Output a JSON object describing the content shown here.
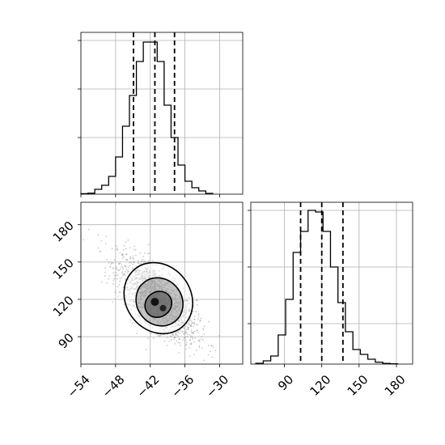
{
  "chart_data": [
    {
      "type": "histogram",
      "panel": "top-left",
      "parameter_axis": {
        "range": [
          -54,
          -26
        ],
        "ticks": [
          -54,
          -48,
          -42,
          -36,
          -30
        ]
      },
      "bin_edges": [
        -54.0,
        -52.8,
        -51.6,
        -50.4,
        -49.2,
        -48.0,
        -46.8,
        -45.6,
        -44.4,
        -43.2,
        -42.0,
        -40.8,
        -39.6,
        -38.4,
        -37.2,
        -36.0,
        -34.8,
        -33.6,
        -32.4,
        -31.2
      ],
      "counts": [
        0.3,
        0.6,
        3,
        5.5,
        11,
        23,
        42,
        61,
        82,
        94,
        94,
        82,
        55,
        35,
        18,
        8,
        4,
        2,
        0.5
      ],
      "count_range": [
        0,
        100
      ],
      "quantile_lines": [
        -44.9,
        -41.2,
        -37.8
      ],
      "grid": true
    },
    {
      "type": "scatter-density",
      "panel": "bottom-left",
      "x_axis": {
        "range": [
          -54,
          -26
        ],
        "ticks": [
          -54,
          -48,
          -42,
          -36,
          -30
        ],
        "tick_labels": [
          "−54",
          "−48",
          "−42",
          "−36",
          "−30"
        ]
      },
      "y_axis": {
        "range": [
          68,
          198
        ],
        "ticks": [
          90,
          120,
          150,
          180
        ],
        "tick_labels": [
          "90",
          "120",
          "150",
          "180"
        ]
      },
      "distribution": {
        "mean": [
          -40.8,
          120
        ],
        "sd": [
          3.4,
          17
        ],
        "correlation": -0.72
      },
      "contours": [
        {
          "level": "outer",
          "center": [
            -40.6,
            121
          ],
          "radii": [
            5.6,
            30
          ]
        },
        {
          "level": "middle",
          "center": [
            -40.4,
            118
          ],
          "radii": [
            3.9,
            20
          ]
        },
        {
          "level": "inner",
          "center": [
            -40.6,
            116
          ],
          "radii": [
            2.4,
            10
          ]
        }
      ],
      "grid": true
    },
    {
      "type": "histogram",
      "panel": "bottom-right",
      "parameter_axis": {
        "range": [
          63,
          193
        ],
        "ticks": [
          90,
          120,
          150,
          180
        ],
        "tick_labels": [
          "90",
          "120",
          "150",
          "180"
        ]
      },
      "bin_edges": [
        67,
        73,
        79,
        85,
        91,
        97,
        103,
        109,
        115,
        121,
        127,
        133,
        139,
        145,
        151,
        157,
        163,
        169,
        175,
        181
      ],
      "counts": [
        0.5,
        2,
        5,
        18,
        40,
        69,
        82,
        95,
        94,
        82,
        60,
        38,
        20,
        9,
        6,
        3,
        1.2,
        0.4,
        0.2
      ],
      "count_range": [
        0,
        100
      ],
      "quantile_lines": [
        103,
        120,
        137
      ],
      "grid": true
    }
  ],
  "styles": {
    "line_color": "#000000",
    "grid_color": "#b0b0b0",
    "contour_fill": "#555555",
    "scatter_color": "#8c8c8c"
  }
}
